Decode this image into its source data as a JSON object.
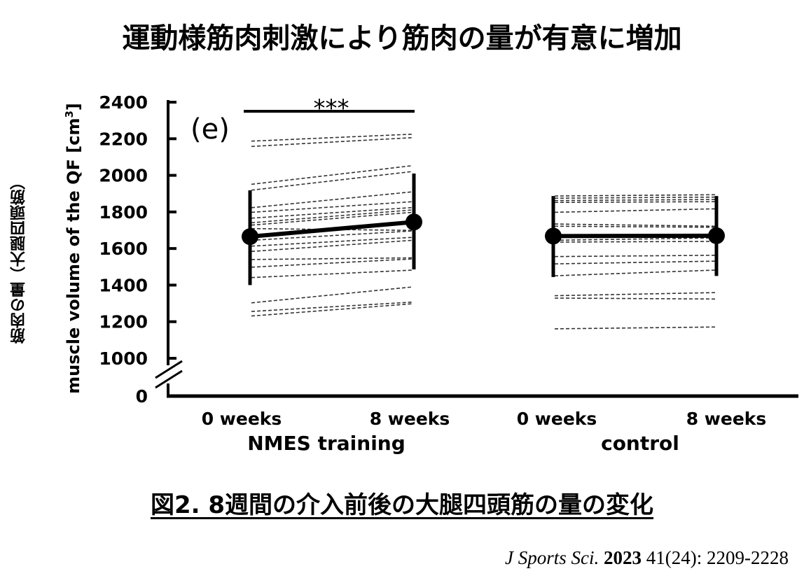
{
  "title": "運動様筋肉刺激により筋肉の量が有意に増加",
  "jp_ylabel": "筋肉の量（大腿四頭筋）",
  "caption": "図2. 8週間の介入前後の大腿四頭筋の量の変化",
  "citation": {
    "journal": "J Sports Sci.",
    "year": "2023",
    "rest": " 41(24): 2209-2228"
  },
  "chart_data": {
    "type": "line",
    "panel_label": "(e)",
    "ylabel": "muscle volume of the QF [cm",
    "ylabel_sup": "3",
    "ylabel_close": "]",
    "yticks": [
      0,
      1000,
      1200,
      1400,
      1600,
      1800,
      2000,
      2200,
      2400
    ],
    "ylim": [
      1000,
      2400
    ],
    "axis_break": true,
    "groups": [
      {
        "name": "NMES training",
        "x_labels": [
          "0 weeks",
          "8 weeks"
        ],
        "mean": [
          1665,
          1745
        ],
        "error_low": [
          1400,
          1486
        ],
        "error_high": [
          1918,
          2010
        ],
        "significance": "***",
        "individuals": [
          [
            2187,
            2225
          ],
          [
            2158,
            2206
          ],
          [
            1951,
            2053
          ],
          [
            1919,
            2021
          ],
          [
            1823,
            1910
          ],
          [
            1798,
            1856
          ],
          [
            1766,
            1824
          ],
          [
            1741,
            1811
          ],
          [
            1728,
            1798
          ],
          [
            1709,
            1699
          ],
          [
            1645,
            1696
          ],
          [
            1613,
            1661
          ],
          [
            1584,
            1645
          ],
          [
            1540,
            1549
          ],
          [
            1498,
            1543
          ],
          [
            1441,
            1482
          ],
          [
            1303,
            1390
          ],
          [
            1256,
            1307
          ],
          [
            1231,
            1298
          ]
        ]
      },
      {
        "name": "control",
        "x_labels": [
          "0 weeks",
          "8 weeks"
        ],
        "mean": [
          1668,
          1670
        ],
        "error_low": [
          1444,
          1450
        ],
        "error_high": [
          1887,
          1887
        ],
        "individuals": [
          [
            1887,
            1894
          ],
          [
            1875,
            1881
          ],
          [
            1862,
            1868
          ],
          [
            1852,
            1856
          ],
          [
            1798,
            1817
          ],
          [
            1734,
            1722
          ],
          [
            1722,
            1716
          ],
          [
            1645,
            1658
          ],
          [
            1635,
            1639
          ],
          [
            1556,
            1563
          ],
          [
            1516,
            1531
          ],
          [
            1451,
            1482
          ],
          [
            1342,
            1359
          ],
          [
            1329,
            1324
          ],
          [
            1161,
            1171
          ]
        ]
      }
    ]
  }
}
